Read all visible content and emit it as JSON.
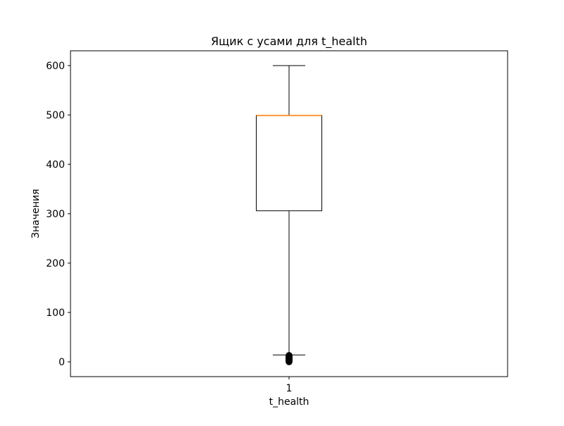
{
  "chart_data": {
    "type": "box",
    "title": "Ящик с усами для t_health",
    "xlabel": "t_health",
    "ylabel": "Значения",
    "categories": [
      "1"
    ],
    "ylim": [
      -30,
      630
    ],
    "yticks": [
      0,
      100,
      200,
      300,
      400,
      500,
      600
    ],
    "grid": false,
    "boxes": [
      {
        "category": "1",
        "whisker_low": 14,
        "q1": 306,
        "median": 499,
        "q3": 499,
        "whisker_high": 600,
        "outliers": [
          0,
          1,
          2,
          3,
          4,
          5,
          6,
          7,
          8,
          9,
          10,
          11,
          12,
          13
        ]
      }
    ],
    "colors": {
      "box": "#000000",
      "median": "#ff7f0e",
      "outlier": "#000000"
    }
  }
}
